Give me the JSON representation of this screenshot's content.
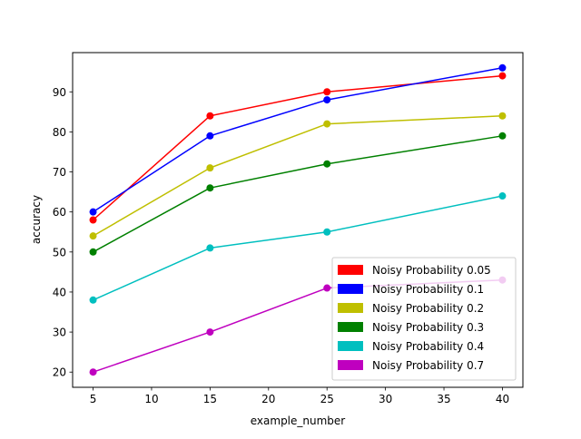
{
  "chart_data": {
    "type": "line",
    "title": "",
    "xlabel": "example_number",
    "ylabel": "accuracy",
    "x": [
      5,
      15,
      25,
      40
    ],
    "xlim": [
      3.25,
      41.75
    ],
    "ylim": [
      16.2,
      99.8
    ],
    "xticks": [
      5,
      10,
      15,
      20,
      25,
      30,
      35,
      40
    ],
    "yticks": [
      20,
      30,
      40,
      50,
      60,
      70,
      80,
      90
    ],
    "grid": false,
    "legend_position": "lower-right",
    "series": [
      {
        "name": "Noisy Probability 0.05",
        "color": "#ff0000",
        "values": [
          58,
          84,
          90,
          94
        ]
      },
      {
        "name": "Noisy Probability 0.1",
        "color": "#0000ff",
        "values": [
          60,
          79,
          88,
          96
        ]
      },
      {
        "name": "Noisy Probability 0.2",
        "color": "#bfbf00",
        "values": [
          54,
          71,
          82,
          84
        ]
      },
      {
        "name": "Noisy Probability 0.3",
        "color": "#008000",
        "values": [
          50,
          66,
          72,
          79
        ]
      },
      {
        "name": "Noisy Probability 0.4",
        "color": "#00bfbf",
        "values": [
          38,
          51,
          55,
          64
        ]
      },
      {
        "name": "Noisy Probability 0.7",
        "color": "#bf00bf",
        "values": [
          20,
          30,
          41,
          43
        ]
      }
    ]
  }
}
